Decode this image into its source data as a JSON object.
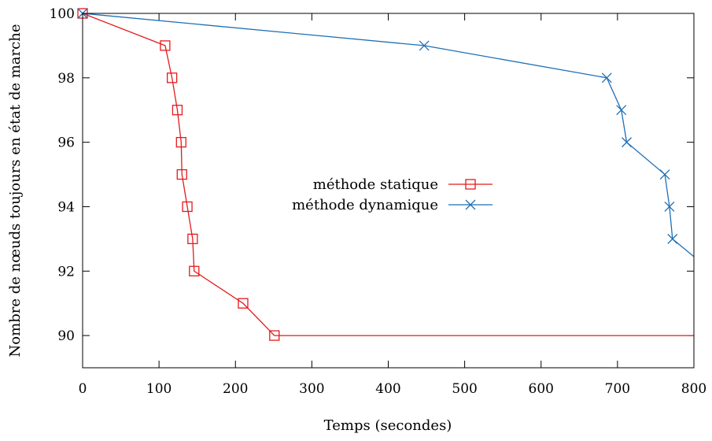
{
  "chart_data": {
    "type": "line",
    "title": "",
    "xlabel": "Temps (secondes)",
    "ylabel": "Nombre de nœuds toujours en état de marche",
    "xlim": [
      0,
      800
    ],
    "ylim": [
      89,
      100
    ],
    "xticks": [
      0,
      100,
      200,
      300,
      400,
      500,
      600,
      700,
      800
    ],
    "yticks": [
      90,
      92,
      94,
      96,
      98,
      100
    ],
    "grid": false,
    "legend_position": "center",
    "series": [
      {
        "name": "méthode statique",
        "color": "#e41a1c",
        "marker": "square",
        "points": [
          [
            0,
            100
          ],
          [
            108,
            99
          ],
          [
            117,
            98
          ],
          [
            124,
            97
          ],
          [
            129,
            96
          ],
          [
            130,
            95
          ],
          [
            137,
            94
          ],
          [
            144,
            93
          ],
          [
            146,
            92
          ],
          [
            210,
            91
          ],
          [
            251,
            90
          ],
          [
            800,
            90
          ]
        ],
        "marker_count": 11
      },
      {
        "name": "méthode dynamique",
        "color": "#1f6fb4",
        "marker": "x",
        "points": [
          [
            0,
            100
          ],
          [
            447,
            99
          ],
          [
            686,
            98
          ],
          [
            705,
            97
          ],
          [
            712,
            96
          ],
          [
            762,
            95
          ],
          [
            768,
            94
          ],
          [
            772,
            93
          ],
          [
            800,
            92.45
          ]
        ],
        "marker_count": 8
      }
    ]
  }
}
